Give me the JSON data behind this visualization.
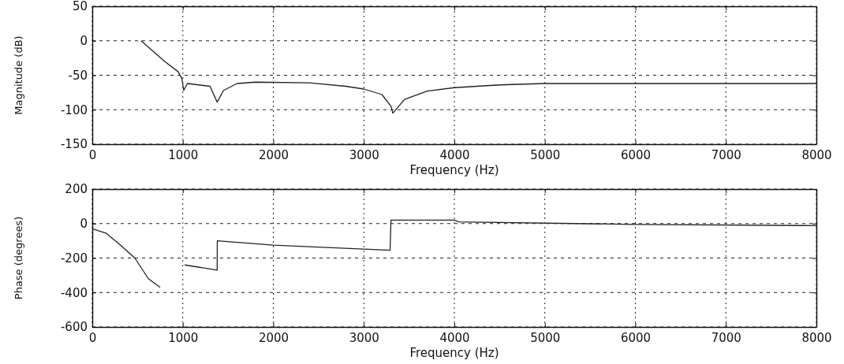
{
  "chart_data": [
    {
      "type": "line",
      "xlabel": "Frequency (Hz)",
      "ylabel": "Magnitude (dB)",
      "xlim": [
        0,
        8000
      ],
      "ylim": [
        -150,
        50
      ],
      "xticks": [
        0,
        1000,
        2000,
        3000,
        4000,
        5000,
        6000,
        7000,
        8000
      ],
      "yticks": [
        -150,
        -100,
        -50,
        0,
        50
      ],
      "grid": true,
      "series": [
        {
          "color": "#222222",
          "x": [
            540,
            800,
            950,
            990,
            1010,
            1050,
            1300,
            1380,
            1450,
            1600,
            1800,
            2400,
            2800,
            3000,
            3200,
            3300,
            3320,
            3450,
            3700,
            4000,
            4500,
            5000,
            6000,
            8000
          ],
          "values": [
            0,
            -30,
            -45,
            -55,
            -72,
            -62,
            -66,
            -89,
            -72,
            -62,
            -60,
            -61,
            -66,
            -70,
            -78,
            -95,
            -105,
            -85,
            -73,
            -68,
            -64,
            -62,
            -62,
            -62
          ]
        }
      ]
    },
    {
      "type": "line",
      "xlabel": "Frequency (Hz)",
      "ylabel": "Phase (degrees)",
      "xlim": [
        0,
        8000
      ],
      "ylim": [
        -600,
        200
      ],
      "xticks": [
        0,
        1000,
        2000,
        3000,
        4000,
        5000,
        6000,
        7000,
        8000
      ],
      "yticks": [
        -600,
        -400,
        -200,
        0,
        200
      ],
      "grid": true,
      "series": [
        {
          "color": "#222222",
          "x": [
            0,
            150,
            300,
            470,
            620,
            750,
            1000,
            1020,
            1380,
            1381,
            2000,
            3290,
            3300,
            4000,
            4050,
            6000,
            8000
          ],
          "values": [
            -30,
            -55,
            -120,
            -200,
            -320,
            -370,
            null,
            -240,
            -270,
            -100,
            -125,
            -155,
            20,
            20,
            10,
            -5,
            -12
          ]
        }
      ]
    }
  ]
}
